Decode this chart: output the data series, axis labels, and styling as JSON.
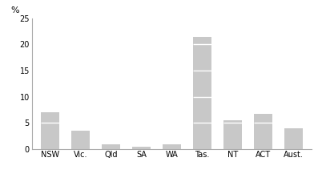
{
  "categories": [
    "NSW",
    "Vic.",
    "Qld",
    "SA",
    "WA",
    "Tas.",
    "NT",
    "ACT",
    "Aust."
  ],
  "values": [
    7.1,
    3.5,
    1.0,
    0.5,
    1.0,
    21.5,
    5.6,
    6.7,
    4.0
  ],
  "segment_size": 5,
  "bar_color": "#c8c8c8",
  "segment_line_color": "#ffffff",
  "ylabel": "%",
  "ylim": [
    0,
    25
  ],
  "yticks": [
    0,
    5,
    10,
    15,
    20,
    25
  ],
  "background_color": "#ffffff",
  "bar_width": 0.6,
  "tick_fontsize": 7,
  "ylabel_fontsize": 8,
  "spine_color": "#aaaaaa"
}
